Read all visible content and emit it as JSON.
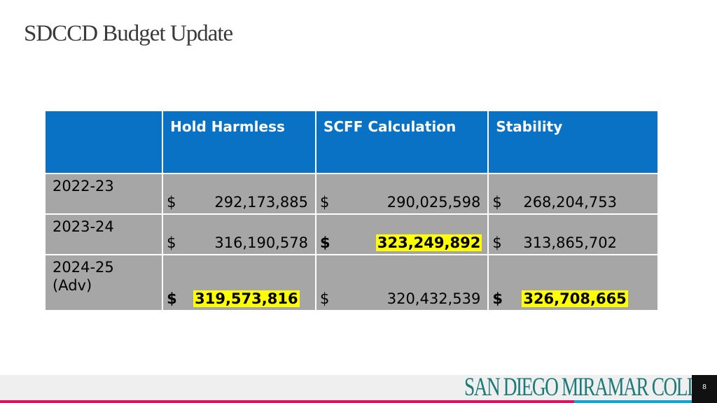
{
  "title": "SDCCD Budget Update",
  "table": {
    "headers": [
      "",
      "Hold Harmless",
      "SCFF Calculation",
      "Stability"
    ],
    "rows": [
      {
        "year_lines": [
          "2022-23"
        ],
        "cells": [
          {
            "dollar": "$",
            "value": "292,173,885",
            "highlight": false
          },
          {
            "dollar": "$",
            "value": "290,025,598",
            "highlight": false
          },
          {
            "dollar": "$",
            "value": "268,204,753",
            "highlight": false
          }
        ]
      },
      {
        "year_lines": [
          "2023-24"
        ],
        "cells": [
          {
            "dollar": "$",
            "value": "316,190,578",
            "highlight": false
          },
          {
            "dollar": "$",
            "value": "323,249,892",
            "highlight": true
          },
          {
            "dollar": "$",
            "value": "313,865,702",
            "highlight": false
          }
        ]
      },
      {
        "year_lines": [
          "2024-25",
          "(Adv)"
        ],
        "cells": [
          {
            "dollar": "$",
            "value": "319,573,816",
            "highlight": true
          },
          {
            "dollar": "$",
            "value": "320,432,539",
            "highlight": false
          },
          {
            "dollar": "$",
            "value": "326,708,665",
            "highlight": true
          }
        ]
      }
    ]
  },
  "footer": {
    "logo_text": "San Diego Miramar College",
    "page_number": "8"
  },
  "colors": {
    "header_blue": "#0a72c4",
    "row_gray": "#a6a6a6",
    "highlight_yellow": "#ffff00",
    "logo_teal": "#1e7a78",
    "accent_pink": "#d6165f",
    "accent_blue": "#1aa2c9"
  }
}
